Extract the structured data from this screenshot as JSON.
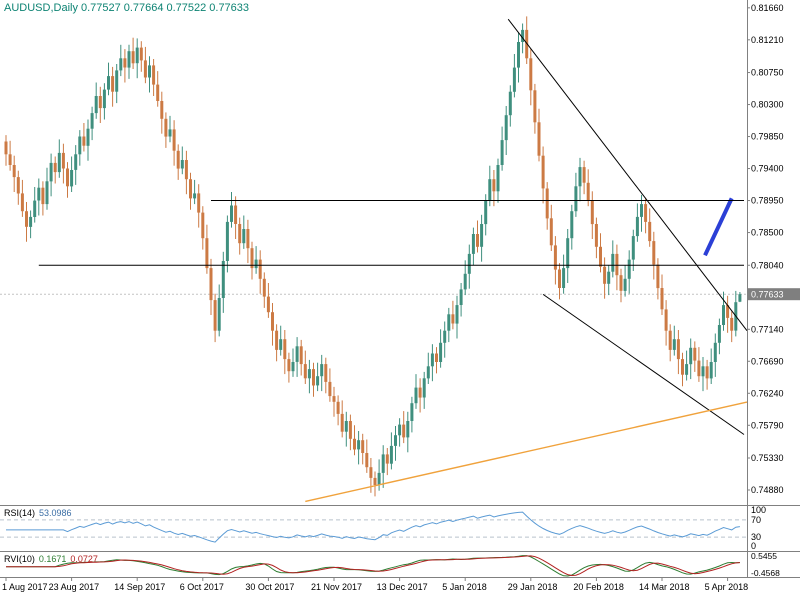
{
  "header": {
    "symbol_period": "AUDUSD,Daily",
    "open": "0.77527",
    "high": "0.77664",
    "low": "0.77522",
    "close": "0.77633"
  },
  "price_axis": {
    "labels": [
      {
        "text": "0.81660",
        "price": 0.8166
      },
      {
        "text": "0.81210",
        "price": 0.8121
      },
      {
        "text": "0.80750",
        "price": 0.8075
      },
      {
        "text": "0.80300",
        "price": 0.803
      },
      {
        "text": "0.79850",
        "price": 0.7985
      },
      {
        "text": "0.79400",
        "price": 0.794
      },
      {
        "text": "0.78950",
        "price": 0.7895
      },
      {
        "text": "0.78500",
        "price": 0.785
      },
      {
        "text": "0.78040",
        "price": 0.7804
      },
      {
        "text": "0.77140",
        "price": 0.7714
      },
      {
        "text": "0.76690",
        "price": 0.7669
      },
      {
        "text": "0.76240",
        "price": 0.7624
      },
      {
        "text": "0.75790",
        "price": 0.7579
      },
      {
        "text": "0.75330",
        "price": 0.7533
      },
      {
        "text": "0.74880",
        "price": 0.7488
      }
    ],
    "current": {
      "text": "0.77633",
      "price": 0.77633
    }
  },
  "x_axis": {
    "labels": [
      "1 Aug 2017",
      "23 Aug 2017",
      "14 Sep 2017",
      "6 Oct 2017",
      "30 Oct 2017",
      "21 Nov 2017",
      "13 Dec 2017",
      "5 Jan 2018",
      "29 Jan 2018",
      "20 Feb 2018",
      "14 Mar 2018",
      "5 Apr 2018"
    ],
    "bars_per_label": 16
  },
  "indicators": {
    "rsi": {
      "label": "RSI(14)",
      "value": "53.0986",
      "period": 14,
      "color": "#5b9bd5",
      "levels": [
        70,
        30
      ],
      "scale_labels": [
        {
          "text": "100",
          "value": 100
        },
        {
          "text": "70",
          "value": 70
        },
        {
          "text": "30",
          "value": 30
        },
        {
          "text": "0",
          "value": 0
        }
      ]
    },
    "rvi": {
      "label": "RVI(10)",
      "value_main": "0.1671",
      "value_signal": "0.0727",
      "period": 10,
      "color_main": "#2e7d32",
      "color_signal": "#b22222",
      "scale_max": 0.5455,
      "scale_min": -0.4568,
      "scale_labels": [
        {
          "text": "0.5455",
          "value": 0.5455
        },
        {
          "text": "-0.4568",
          "value": -0.4568
        }
      ]
    }
  },
  "chart_data": {
    "type": "candlestick",
    "title": "AUDUSD Daily",
    "y_top": 0.8177,
    "y_bottom": 0.74655,
    "grid": false,
    "colors": {
      "up": "#3f8f7e",
      "down": "#cc7a44",
      "background": "#ffffff",
      "axis_text": "#000000",
      "separator": "#808080",
      "current_price_line": "#c4c4c4",
      "badge_bg": "#7f7f7f",
      "badge_text": "#ffffff"
    },
    "candles": [
      [
        0.7978,
        0.7987,
        0.7944,
        0.796
      ],
      [
        0.796,
        0.7979,
        0.7937,
        0.7945
      ],
      [
        0.7945,
        0.7958,
        0.7907,
        0.7928
      ],
      [
        0.7928,
        0.7937,
        0.7889,
        0.7905
      ],
      [
        0.7905,
        0.7924,
        0.7872,
        0.788
      ],
      [
        0.788,
        0.7893,
        0.7837,
        0.7858
      ],
      [
        0.7858,
        0.7881,
        0.7842,
        0.7872
      ],
      [
        0.7872,
        0.7914,
        0.7864,
        0.7895
      ],
      [
        0.7895,
        0.7926,
        0.7874,
        0.7913
      ],
      [
        0.7913,
        0.7922,
        0.7874,
        0.789
      ],
      [
        0.789,
        0.7941,
        0.7882,
        0.7922
      ],
      [
        0.7922,
        0.7961,
        0.7901,
        0.7948
      ],
      [
        0.7948,
        0.7957,
        0.7919,
        0.7935
      ],
      [
        0.7935,
        0.7981,
        0.7927,
        0.7962
      ],
      [
        0.7962,
        0.7975,
        0.7919,
        0.794
      ],
      [
        0.794,
        0.7949,
        0.7899,
        0.7915
      ],
      [
        0.7915,
        0.7957,
        0.7907,
        0.7938
      ],
      [
        0.7938,
        0.7973,
        0.7917,
        0.796
      ],
      [
        0.796,
        0.7994,
        0.7944,
        0.7985
      ],
      [
        0.7985,
        0.8004,
        0.7964,
        0.7972
      ],
      [
        0.7972,
        0.8009,
        0.7951,
        0.7996
      ],
      [
        0.7996,
        0.8027,
        0.798,
        0.8018
      ],
      [
        0.8018,
        0.8061,
        0.801,
        0.8042
      ],
      [
        0.8042,
        0.8055,
        0.8004,
        0.8025
      ],
      [
        0.8025,
        0.806,
        0.8009,
        0.8051
      ],
      [
        0.8051,
        0.8089,
        0.8043,
        0.807
      ],
      [
        0.807,
        0.8083,
        0.8027,
        0.8048
      ],
      [
        0.8048,
        0.8087,
        0.8032,
        0.8078
      ],
      [
        0.8078,
        0.8114,
        0.807,
        0.8095
      ],
      [
        0.8095,
        0.8108,
        0.8061,
        0.8082
      ],
      [
        0.8082,
        0.8114,
        0.8066,
        0.8105
      ],
      [
        0.8105,
        0.8124,
        0.808,
        0.8088
      ],
      [
        0.8088,
        0.8123,
        0.8067,
        0.811
      ],
      [
        0.811,
        0.8119,
        0.8076,
        0.8092
      ],
      [
        0.8092,
        0.8111,
        0.806,
        0.8068
      ],
      [
        0.8068,
        0.8098,
        0.8047,
        0.8085
      ],
      [
        0.8085,
        0.8094,
        0.8042,
        0.8058
      ],
      [
        0.8058,
        0.8077,
        0.8027,
        0.8035
      ],
      [
        0.8035,
        0.8048,
        0.7989,
        0.801
      ],
      [
        0.801,
        0.8019,
        0.7969,
        0.7985
      ],
      [
        0.7985,
        0.8014,
        0.7977,
        0.7995
      ],
      [
        0.7995,
        0.8008,
        0.7944,
        0.7965
      ],
      [
        0.7965,
        0.7974,
        0.7924,
        0.794
      ],
      [
        0.794,
        0.7971,
        0.7932,
        0.7952
      ],
      [
        0.7952,
        0.7965,
        0.7904,
        0.7925
      ],
      [
        0.7925,
        0.7934,
        0.7882,
        0.7898
      ],
      [
        0.7898,
        0.7924,
        0.789,
        0.7905
      ],
      [
        0.7905,
        0.7918,
        0.7857,
        0.7878
      ],
      [
        0.7878,
        0.7887,
        0.7826,
        0.7842
      ],
      [
        0.7842,
        0.7861,
        0.7792,
        0.78
      ],
      [
        0.78,
        0.7813,
        0.7734,
        0.7755
      ],
      [
        0.7755,
        0.7764,
        0.7696,
        0.7712
      ],
      [
        0.7712,
        0.7777,
        0.7704,
        0.7758
      ],
      [
        0.7758,
        0.7823,
        0.7737,
        0.781
      ],
      [
        0.781,
        0.7874,
        0.7794,
        0.7865
      ],
      [
        0.7865,
        0.7907,
        0.7857,
        0.7888
      ],
      [
        0.7888,
        0.7901,
        0.7841,
        0.7862
      ],
      [
        0.7862,
        0.7871,
        0.7819,
        0.7835
      ],
      [
        0.7835,
        0.7874,
        0.7827,
        0.7855
      ],
      [
        0.7855,
        0.7868,
        0.7807,
        0.7828
      ],
      [
        0.7828,
        0.7837,
        0.7784,
        0.78
      ],
      [
        0.78,
        0.7831,
        0.7792,
        0.7812
      ],
      [
        0.7812,
        0.7825,
        0.7764,
        0.7785
      ],
      [
        0.7785,
        0.7794,
        0.7744,
        0.776
      ],
      [
        0.776,
        0.7779,
        0.773,
        0.7738
      ],
      [
        0.7738,
        0.7751,
        0.7691,
        0.7712
      ],
      [
        0.7712,
        0.7721,
        0.7669,
        0.7685
      ],
      [
        0.7685,
        0.7719,
        0.7677,
        0.77
      ],
      [
        0.77,
        0.7713,
        0.7651,
        0.7672
      ],
      [
        0.7672,
        0.7681,
        0.7639,
        0.7655
      ],
      [
        0.7655,
        0.7687,
        0.7647,
        0.7668
      ],
      [
        0.7668,
        0.7703,
        0.7647,
        0.769
      ],
      [
        0.769,
        0.7699,
        0.7649,
        0.7665
      ],
      [
        0.7665,
        0.7684,
        0.7637,
        0.7645
      ],
      [
        0.7645,
        0.7671,
        0.7624,
        0.7658
      ],
      [
        0.7658,
        0.7667,
        0.7619,
        0.7635
      ],
      [
        0.7635,
        0.7667,
        0.7627,
        0.7648
      ],
      [
        0.7648,
        0.7678,
        0.7627,
        0.7665
      ],
      [
        0.7665,
        0.7674,
        0.7624,
        0.764
      ],
      [
        0.764,
        0.7659,
        0.7612,
        0.762
      ],
      [
        0.762,
        0.7633,
        0.7591,
        0.7612
      ],
      [
        0.7612,
        0.7621,
        0.7579,
        0.7595
      ],
      [
        0.7595,
        0.7614,
        0.7562,
        0.757
      ],
      [
        0.757,
        0.7598,
        0.7549,
        0.7585
      ],
      [
        0.7585,
        0.7594,
        0.7544,
        0.756
      ],
      [
        0.756,
        0.7579,
        0.7537,
        0.7545
      ],
      [
        0.7545,
        0.7571,
        0.7524,
        0.7558
      ],
      [
        0.7558,
        0.7567,
        0.7524,
        0.754
      ],
      [
        0.754,
        0.7559,
        0.7512,
        0.752
      ],
      [
        0.752,
        0.7533,
        0.7484,
        0.7505
      ],
      [
        0.7505,
        0.7514,
        0.7479,
        0.7495
      ],
      [
        0.7495,
        0.7531,
        0.7487,
        0.7512
      ],
      [
        0.7512,
        0.7551,
        0.7491,
        0.7538
      ],
      [
        0.7538,
        0.7547,
        0.7509,
        0.7525
      ],
      [
        0.7525,
        0.7569,
        0.7517,
        0.755
      ],
      [
        0.755,
        0.7578,
        0.7529,
        0.7565
      ],
      [
        0.7565,
        0.7589,
        0.7549,
        0.758
      ],
      [
        0.758,
        0.7599,
        0.7554,
        0.7562
      ],
      [
        0.7562,
        0.7598,
        0.7541,
        0.7585
      ],
      [
        0.7585,
        0.7619,
        0.7569,
        0.761
      ],
      [
        0.761,
        0.7651,
        0.7602,
        0.7632
      ],
      [
        0.7632,
        0.7645,
        0.7597,
        0.7618
      ],
      [
        0.7618,
        0.7654,
        0.7602,
        0.7645
      ],
      [
        0.7645,
        0.7681,
        0.7637,
        0.7662
      ],
      [
        0.7662,
        0.7693,
        0.7641,
        0.768
      ],
      [
        0.768,
        0.7689,
        0.7652,
        0.7668
      ],
      [
        0.7668,
        0.7714,
        0.766,
        0.7695
      ],
      [
        0.7695,
        0.7725,
        0.7674,
        0.7712
      ],
      [
        0.7712,
        0.7744,
        0.7696,
        0.7735
      ],
      [
        0.7735,
        0.7754,
        0.7714,
        0.7722
      ],
      [
        0.7722,
        0.7761,
        0.7701,
        0.7748
      ],
      [
        0.7748,
        0.7779,
        0.7732,
        0.777
      ],
      [
        0.777,
        0.7811,
        0.7762,
        0.7792
      ],
      [
        0.7792,
        0.7833,
        0.7771,
        0.782
      ],
      [
        0.782,
        0.7857,
        0.7804,
        0.7848
      ],
      [
        0.7848,
        0.7867,
        0.7822,
        0.783
      ],
      [
        0.783,
        0.7875,
        0.7809,
        0.7862
      ],
      [
        0.7862,
        0.7904,
        0.7846,
        0.7895
      ],
      [
        0.7895,
        0.7944,
        0.7887,
        0.7925
      ],
      [
        0.7925,
        0.7938,
        0.7887,
        0.7908
      ],
      [
        0.7908,
        0.7954,
        0.7892,
        0.7945
      ],
      [
        0.7945,
        0.7999,
        0.7937,
        0.798
      ],
      [
        0.798,
        0.8028,
        0.7959,
        0.8015
      ],
      [
        0.8015,
        0.8057,
        0.7999,
        0.8048
      ],
      [
        0.8048,
        0.8101,
        0.804,
        0.8082
      ],
      [
        0.8082,
        0.8131,
        0.8061,
        0.8118
      ],
      [
        0.8118,
        0.8144,
        0.8102,
        0.8135
      ],
      [
        0.8135,
        0.8154,
        0.8087,
        0.8095
      ],
      [
        0.8095,
        0.8108,
        0.8029,
        0.805
      ],
      [
        0.805,
        0.8059,
        0.7989,
        0.8005
      ],
      [
        0.8005,
        0.8024,
        0.795,
        0.7958
      ],
      [
        0.7958,
        0.7971,
        0.7891,
        0.7912
      ],
      [
        0.7912,
        0.7921,
        0.7854,
        0.787
      ],
      [
        0.787,
        0.7889,
        0.7824,
        0.7832
      ],
      [
        0.7832,
        0.7845,
        0.7777,
        0.7798
      ],
      [
        0.7798,
        0.7807,
        0.7756,
        0.7772
      ],
      [
        0.7772,
        0.7819,
        0.7764,
        0.78
      ],
      [
        0.78,
        0.7855,
        0.7779,
        0.7842
      ],
      [
        0.7842,
        0.7889,
        0.7826,
        0.788
      ],
      [
        0.788,
        0.7934,
        0.7872,
        0.7915
      ],
      [
        0.7915,
        0.7955,
        0.7894,
        0.7942
      ],
      [
        0.7942,
        0.7951,
        0.7904,
        0.792
      ],
      [
        0.792,
        0.7939,
        0.7887,
        0.7895
      ],
      [
        0.7895,
        0.7908,
        0.7841,
        0.7862
      ],
      [
        0.7862,
        0.7871,
        0.7814,
        0.783
      ],
      [
        0.783,
        0.7849,
        0.7794,
        0.7802
      ],
      [
        0.7802,
        0.7815,
        0.7757,
        0.7778
      ],
      [
        0.7778,
        0.7804,
        0.7762,
        0.7795
      ],
      [
        0.7795,
        0.7839,
        0.7787,
        0.782
      ],
      [
        0.782,
        0.7833,
        0.7769,
        0.779
      ],
      [
        0.779,
        0.7799,
        0.7752,
        0.7768
      ],
      [
        0.7768,
        0.7804,
        0.776,
        0.7785
      ],
      [
        0.7785,
        0.7825,
        0.7764,
        0.7812
      ],
      [
        0.7812,
        0.7854,
        0.7796,
        0.7845
      ],
      [
        0.7845,
        0.7891,
        0.7837,
        0.7872
      ],
      [
        0.7872,
        0.7903,
        0.7851,
        0.789
      ],
      [
        0.789,
        0.7899,
        0.7849,
        0.7865
      ],
      [
        0.7865,
        0.7884,
        0.783,
        0.7838
      ],
      [
        0.7838,
        0.7851,
        0.7784,
        0.7805
      ],
      [
        0.7805,
        0.7814,
        0.7756,
        0.7772
      ],
      [
        0.7772,
        0.7791,
        0.7734,
        0.7742
      ],
      [
        0.7742,
        0.7755,
        0.7691,
        0.7712
      ],
      [
        0.7712,
        0.7721,
        0.7669,
        0.7685
      ],
      [
        0.7685,
        0.7719,
        0.7677,
        0.77
      ],
      [
        0.77,
        0.7713,
        0.7651,
        0.7672
      ],
      [
        0.7672,
        0.7681,
        0.7634,
        0.765
      ],
      [
        0.765,
        0.7684,
        0.7642,
        0.7665
      ],
      [
        0.7665,
        0.7701,
        0.7644,
        0.7688
      ],
      [
        0.7688,
        0.7697,
        0.7654,
        0.767
      ],
      [
        0.767,
        0.7689,
        0.764,
        0.7648
      ],
      [
        0.7648,
        0.7675,
        0.7627,
        0.7662
      ],
      [
        0.7662,
        0.7671,
        0.7629,
        0.7645
      ],
      [
        0.7645,
        0.7687,
        0.7637,
        0.7668
      ],
      [
        0.7668,
        0.7708,
        0.7647,
        0.7695
      ],
      [
        0.7695,
        0.7729,
        0.7679,
        0.772
      ],
      [
        0.772,
        0.7767,
        0.7712,
        0.7748
      ],
      [
        0.7748,
        0.7761,
        0.7709,
        0.773
      ],
      [
        0.773,
        0.7739,
        0.7696,
        0.7712
      ],
      [
        0.7712,
        0.7768,
        0.7704,
        0.7752
      ],
      [
        0.77527,
        0.77664,
        0.77522,
        0.77633
      ]
    ],
    "objects": [
      {
        "name": "upper-descending-trendline",
        "type": "trend",
        "color": "#000000",
        "width": 1,
        "from": [
          122.5,
          0.815
        ],
        "to": [
          181,
          0.771
        ]
      },
      {
        "name": "lower-descending-trendline",
        "type": "trend",
        "color": "#000000",
        "width": 1,
        "from": [
          131,
          0.7763
        ],
        "to": [
          180,
          0.7566
        ]
      },
      {
        "name": "ascending-support-line",
        "type": "trend",
        "color": "#f0a23c",
        "width": 1.4,
        "from": [
          73,
          0.7472
        ],
        "to": [
          181,
          0.7612
        ]
      },
      {
        "name": "blue-trend-marker",
        "type": "trend",
        "color": "#2b3fd6",
        "width": 4,
        "from": [
          170.5,
          0.7818
        ],
        "to": [
          177,
          0.7898
        ]
      },
      {
        "name": "resistance-line",
        "type": "hline",
        "color": "#000000",
        "width": 1,
        "price": 0.7895,
        "from_i": 50,
        "to_i": 180
      },
      {
        "name": "support-line",
        "type": "hline",
        "color": "#000000",
        "width": 1,
        "price": 0.7804,
        "from_i": 8,
        "to_i": 180
      }
    ]
  }
}
